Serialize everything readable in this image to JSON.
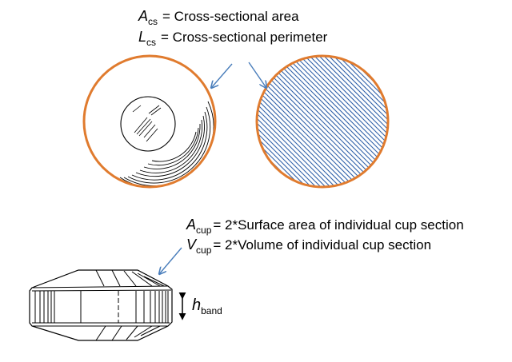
{
  "labels": {
    "a_cs": {
      "symbol": "A",
      "subscript": "cs",
      "text": "= Cross-sectional area"
    },
    "l_cs": {
      "symbol": "L",
      "subscript": "cs",
      "text": "= Cross-sectional perimeter"
    },
    "a_cup": {
      "symbol": "A",
      "subscript": "cup",
      "text": "= 2*Surface area of individual cup section"
    },
    "v_cup": {
      "symbol": "V",
      "subscript": "cup",
      "text": "= 2*Volume of individual cup section"
    },
    "h_band": {
      "symbol": "h",
      "subscript": "band"
    }
  },
  "colors": {
    "outline": "#e07b2e",
    "arrow": "#4a7ebb",
    "hatch": "#2e5fa8",
    "ink": "#000000"
  }
}
